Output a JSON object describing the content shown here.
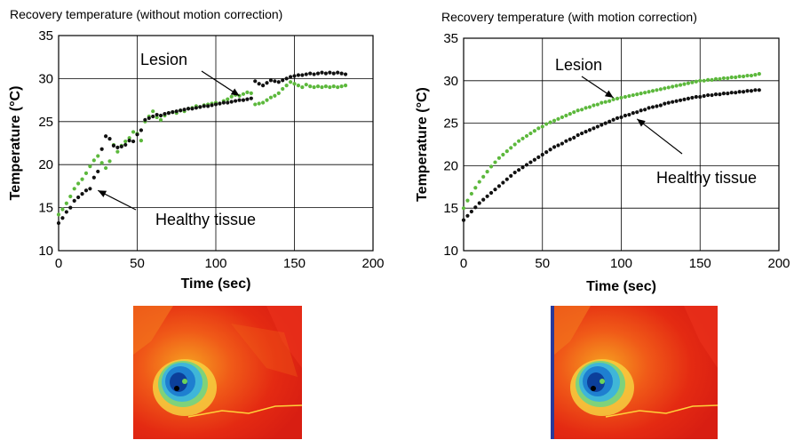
{
  "chart_data": [
    {
      "type": "scatter",
      "title": "Recovery temperature (without motion correction)",
      "xlabel": "Time (sec)",
      "ylabel": "Temperature (°C)",
      "xlim": [
        0,
        200
      ],
      "ylim": [
        10,
        35
      ],
      "xticks": [
        "0",
        "50",
        "100",
        "150",
        "200"
      ],
      "yticks": [
        "10",
        "15",
        "20",
        "25",
        "30",
        "35"
      ],
      "grid": true,
      "annotations": [
        {
          "text": "Lesion",
          "points_to": [
            115,
            28
          ]
        },
        {
          "text": "Healthy tissue",
          "points_to": [
            25,
            17
          ]
        }
      ],
      "series": [
        {
          "name": "Lesion",
          "color": "#5cb83c",
          "x": [
            0,
            2.5,
            5,
            7.5,
            10,
            12.5,
            15,
            17.5,
            20,
            22.5,
            25,
            27.5,
            30,
            32.5,
            35,
            37.5,
            40,
            42.5,
            45,
            47.5,
            50,
            52.5,
            55,
            57.5,
            60,
            62.5,
            65,
            67.5,
            70,
            72.5,
            75,
            77.5,
            80,
            82.5,
            85,
            87.5,
            90,
            92.5,
            95,
            97.5,
            100,
            102.5,
            105,
            107.5,
            110,
            112.5,
            115,
            117.5,
            120,
            122.5,
            125,
            127.5,
            130,
            132.5,
            135,
            137.5,
            140,
            142.5,
            145,
            147.5,
            150,
            152.5,
            155,
            157.5,
            160,
            162.5,
            165,
            167.5,
            170,
            172.5,
            175,
            177.5,
            180,
            182.5
          ],
          "y": [
            14.2,
            14.8,
            15.5,
            16.3,
            17.2,
            17.8,
            18.3,
            19.0,
            19.8,
            20.5,
            21.0,
            20.2,
            19.6,
            20.4,
            22.3,
            21.5,
            22.2,
            22.7,
            23.1,
            23.8,
            23.6,
            22.8,
            25.0,
            25.6,
            26.2,
            25.5,
            25.2,
            25.7,
            26.0,
            26.1,
            26.0,
            26.3,
            26.2,
            26.5,
            26.6,
            26.8,
            26.7,
            26.9,
            27.0,
            27.1,
            27.2,
            27.1,
            27.4,
            27.6,
            27.9,
            28.1,
            28.0,
            28.2,
            28.4,
            28.3,
            27.0,
            27.1,
            27.2,
            27.5,
            27.8,
            28.0,
            28.3,
            28.8,
            29.2,
            29.6,
            29.4,
            29.2,
            29.0,
            29.3,
            29.1,
            29.0,
            29.1,
            29.0,
            29.1,
            29.0,
            29.1,
            29.0,
            29.1,
            29.2
          ]
        },
        {
          "name": "Healthy tissue",
          "color": "#111111",
          "x": [
            0,
            2.5,
            5,
            7.5,
            10,
            12.5,
            15,
            17.5,
            20,
            22.5,
            25,
            27.5,
            30,
            32.5,
            35,
            37.5,
            40,
            42.5,
            45,
            47.5,
            50,
            52.5,
            55,
            57.5,
            60,
            62.5,
            65,
            67.5,
            70,
            72.5,
            75,
            77.5,
            80,
            82.5,
            85,
            87.5,
            90,
            92.5,
            95,
            97.5,
            100,
            102.5,
            105,
            107.5,
            110,
            112.5,
            115,
            117.5,
            120,
            122.5,
            125,
            127.5,
            130,
            132.5,
            135,
            137.5,
            140,
            142.5,
            145,
            147.5,
            150,
            152.5,
            155,
            157.5,
            160,
            162.5,
            165,
            167.5,
            170,
            172.5,
            175,
            177.5,
            180,
            182.5
          ],
          "y": [
            13.2,
            13.8,
            14.5,
            15.0,
            15.8,
            16.2,
            16.6,
            17.0,
            17.2,
            18.5,
            19.2,
            21.8,
            23.3,
            23.0,
            22.2,
            22.0,
            22.1,
            22.3,
            22.8,
            22.7,
            23.5,
            24.0,
            25.2,
            25.4,
            25.6,
            25.8,
            25.7,
            25.9,
            26.0,
            26.1,
            26.2,
            26.3,
            26.4,
            26.5,
            26.5,
            26.6,
            26.7,
            26.8,
            26.8,
            26.9,
            27.0,
            27.1,
            27.2,
            27.2,
            27.3,
            27.4,
            27.5,
            27.5,
            27.6,
            27.7,
            29.7,
            29.4,
            29.2,
            29.5,
            29.8,
            29.7,
            29.6,
            29.8,
            30.0,
            30.2,
            30.3,
            30.4,
            30.4,
            30.5,
            30.6,
            30.5,
            30.6,
            30.7,
            30.6,
            30.7,
            30.6,
            30.7,
            30.6,
            30.5
          ]
        }
      ]
    },
    {
      "type": "scatter",
      "title": "Recovery temperature (with motion correction)",
      "xlabel": "Time (sec)",
      "ylabel": "Temperature (°C)",
      "xlim": [
        0,
        200
      ],
      "ylim": [
        10,
        35
      ],
      "xticks": [
        "0",
        "50",
        "100",
        "150",
        "200"
      ],
      "yticks": [
        "10",
        "15",
        "20",
        "25",
        "30",
        "35"
      ],
      "grid": true,
      "annotations": [
        {
          "text": "Lesion",
          "points_to": [
            95,
            28
          ]
        },
        {
          "text": "Healthy tissue",
          "points_to": [
            110,
            25.5
          ]
        }
      ],
      "series": [
        {
          "name": "Lesion",
          "color": "#5cb83c",
          "x": [
            0,
            2.5,
            5,
            7.5,
            10,
            12.5,
            15,
            17.5,
            20,
            22.5,
            25,
            27.5,
            30,
            32.5,
            35,
            37.5,
            40,
            42.5,
            45,
            47.5,
            50,
            52.5,
            55,
            57.5,
            60,
            62.5,
            65,
            67.5,
            70,
            72.5,
            75,
            77.5,
            80,
            82.5,
            85,
            87.5,
            90,
            92.5,
            95,
            97.5,
            100,
            102.5,
            105,
            107.5,
            110,
            112.5,
            115,
            117.5,
            120,
            122.5,
            125,
            127.5,
            130,
            132.5,
            135,
            137.5,
            140,
            142.5,
            145,
            147.5,
            150,
            152.5,
            155,
            157.5,
            160,
            162.5,
            165,
            167.5,
            170,
            172.5,
            175,
            177.5,
            180,
            182.5,
            185,
            187.5
          ],
          "y": [
            15.0,
            15.9,
            16.7,
            17.4,
            18.1,
            18.7,
            19.3,
            19.9,
            20.4,
            20.9,
            21.3,
            21.7,
            22.1,
            22.5,
            22.9,
            23.2,
            23.5,
            23.8,
            24.1,
            24.4,
            24.6,
            24.9,
            25.1,
            25.3,
            25.5,
            25.7,
            25.9,
            26.1,
            26.3,
            26.5,
            26.6,
            26.8,
            26.9,
            27.1,
            27.2,
            27.4,
            27.5,
            27.6,
            27.8,
            27.9,
            28.0,
            28.1,
            28.2,
            28.3,
            28.4,
            28.5,
            28.6,
            28.7,
            28.8,
            28.9,
            29.0,
            29.1,
            29.2,
            29.3,
            29.4,
            29.5,
            29.6,
            29.7,
            29.8,
            29.9,
            30.0,
            30.0,
            30.1,
            30.1,
            30.2,
            30.2,
            30.3,
            30.3,
            30.4,
            30.4,
            30.5,
            30.5,
            30.6,
            30.6,
            30.7,
            30.8
          ]
        },
        {
          "name": "Healthy tissue",
          "color": "#111111",
          "x": [
            0,
            2.5,
            5,
            7.5,
            10,
            12.5,
            15,
            17.5,
            20,
            22.5,
            25,
            27.5,
            30,
            32.5,
            35,
            37.5,
            40,
            42.5,
            45,
            47.5,
            50,
            52.5,
            55,
            57.5,
            60,
            62.5,
            65,
            67.5,
            70,
            72.5,
            75,
            77.5,
            80,
            82.5,
            85,
            87.5,
            90,
            92.5,
            95,
            97.5,
            100,
            102.5,
            105,
            107.5,
            110,
            112.5,
            115,
            117.5,
            120,
            122.5,
            125,
            127.5,
            130,
            132.5,
            135,
            137.5,
            140,
            142.5,
            145,
            147.5,
            150,
            152.5,
            155,
            157.5,
            160,
            162.5,
            165,
            167.5,
            170,
            172.5,
            175,
            177.5,
            180,
            182.5,
            185,
            187.5
          ],
          "y": [
            13.6,
            14.1,
            14.6,
            15.1,
            15.6,
            16.0,
            16.4,
            16.8,
            17.2,
            17.6,
            18.0,
            18.4,
            18.8,
            19.2,
            19.5,
            19.8,
            20.1,
            20.4,
            20.7,
            21.0,
            21.3,
            21.6,
            21.9,
            22.2,
            22.4,
            22.6,
            22.9,
            23.1,
            23.3,
            23.6,
            23.8,
            24.0,
            24.2,
            24.4,
            24.6,
            24.8,
            25.0,
            25.2,
            25.4,
            25.6,
            25.7,
            25.9,
            26.0,
            26.2,
            26.3,
            26.5,
            26.6,
            26.8,
            26.9,
            27.0,
            27.1,
            27.3,
            27.4,
            27.5,
            27.6,
            27.7,
            27.8,
            27.9,
            28.0,
            28.1,
            28.1,
            28.2,
            28.3,
            28.3,
            28.4,
            28.4,
            28.5,
            28.5,
            28.6,
            28.6,
            28.7,
            28.7,
            28.8,
            28.8,
            28.9,
            28.9
          ]
        }
      ]
    }
  ],
  "thermal_maps": [
    {
      "name": "thermal-map-without-correction"
    },
    {
      "name": "thermal-map-with-correction"
    }
  ]
}
